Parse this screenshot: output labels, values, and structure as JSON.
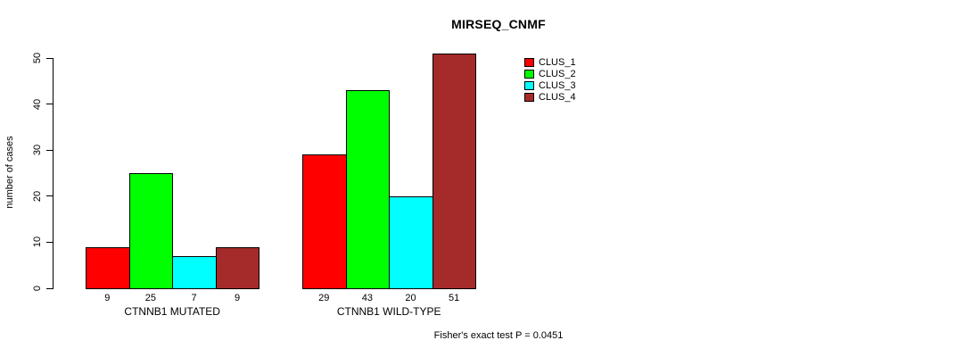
{
  "chart_data": {
    "type": "bar",
    "title": "MIRSEQ_CNMF",
    "ylabel": "number of cases",
    "xlabel": "",
    "ylim": [
      0,
      50
    ],
    "yticks": [
      0,
      10,
      20,
      30,
      40,
      50
    ],
    "categories": [
      "CTNNB1 MUTATED",
      "CTNNB1 WILD-TYPE"
    ],
    "series": [
      {
        "name": "CLUS_1",
        "color": "#ff0000",
        "values": [
          9,
          29
        ]
      },
      {
        "name": "CLUS_2",
        "color": "#00ff00",
        "values": [
          25,
          43
        ]
      },
      {
        "name": "CLUS_3",
        "color": "#00ffff",
        "values": [
          7,
          20
        ]
      },
      {
        "name": "CLUS_4",
        "color": "#a52a2a",
        "values": [
          9,
          51
        ]
      }
    ],
    "value_labels": [
      [
        9,
        25,
        7,
        9
      ],
      [
        29,
        43,
        20,
        51
      ]
    ],
    "legend": {
      "position": "top-right",
      "entries": [
        "CLUS_1",
        "CLUS_2",
        "CLUS_3",
        "CLUS_4"
      ]
    },
    "annotation": "Fisher's exact test P = 0.0451",
    "grid": false,
    "background": "#ffffff"
  }
}
